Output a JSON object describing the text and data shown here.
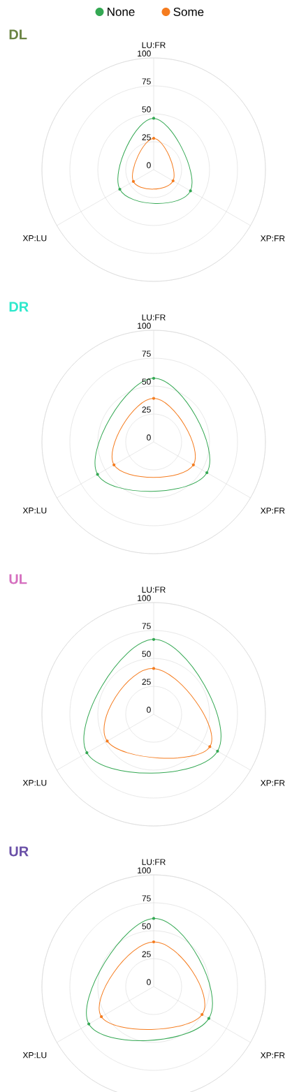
{
  "chart_data": [
    {
      "type": "radar",
      "title": "DL",
      "categories": [
        "LU:FR",
        "XP:FR",
        "XP:LU"
      ],
      "ylim": [
        0,
        100
      ],
      "yticks": [
        0,
        25,
        50,
        75,
        100
      ],
      "grid": true,
      "marker": "circle",
      "legend": "top",
      "series": [
        {
          "name": "None",
          "color": "#34a853",
          "values": [
            46,
            38,
            35
          ]
        },
        {
          "name": "Some",
          "color": "#f57c1f",
          "values": [
            28,
            20,
            21
          ]
        }
      ]
    },
    {
      "type": "radar",
      "title": "DR",
      "categories": [
        "LU:FR",
        "XP:FR",
        "XP:LU"
      ],
      "ylim": [
        0,
        100
      ],
      "yticks": [
        0,
        25,
        50,
        75,
        100
      ],
      "grid": true,
      "marker": "circle",
      "series": [
        {
          "color": "#34a853",
          "values": [
            57,
            55,
            58
          ]
        },
        {
          "color": "#f57c1f",
          "values": [
            39,
            41,
            41
          ]
        }
      ]
    },
    {
      "type": "radar",
      "title": "UL",
      "categories": [
        "LU:FR",
        "XP:FR",
        "XP:LU"
      ],
      "ylim": [
        0,
        100
      ],
      "yticks": [
        0,
        25,
        50,
        75,
        100
      ],
      "grid": true,
      "marker": "circle",
      "series": [
        {
          "color": "#34a853",
          "values": [
            67,
            66,
            69
          ]
        },
        {
          "color": "#f57c1f",
          "values": [
            41,
            58,
            48
          ]
        }
      ]
    },
    {
      "type": "radar",
      "title": "UR",
      "categories": [
        "LU:FR",
        "XP:FR",
        "XP:LU"
      ],
      "ylim": [
        0,
        100
      ],
      "yticks": [
        0,
        25,
        50,
        75,
        100
      ],
      "grid": true,
      "marker": "circle",
      "series": [
        {
          "color": "#34a853",
          "values": [
            61,
            57,
            67
          ]
        },
        {
          "color": "#f57c1f",
          "values": [
            40,
            50,
            54
          ]
        }
      ]
    }
  ]
}
